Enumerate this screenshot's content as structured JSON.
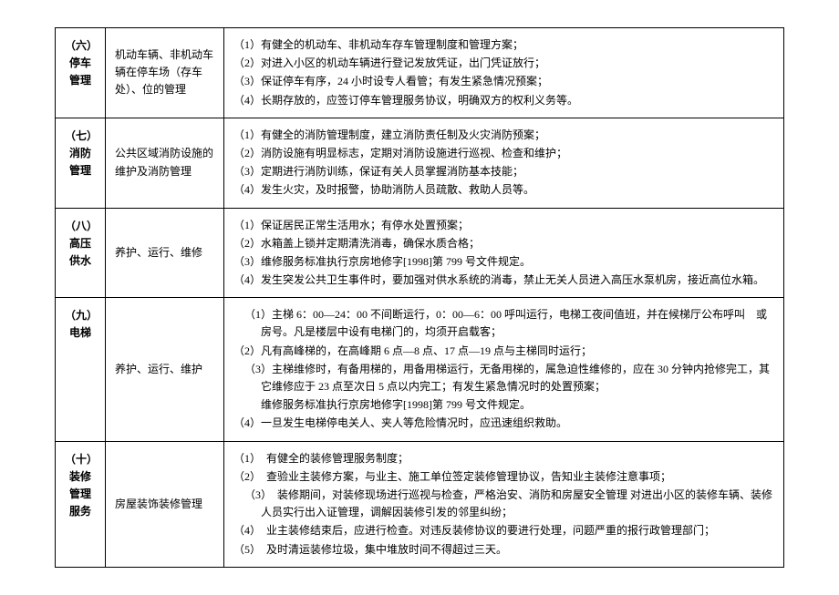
{
  "rows": [
    {
      "section_num": "（六）",
      "section_title": "停车管理",
      "desc": "机动车辆、非机动车辆在停车场（存车处）、位的管理",
      "items": [
        "（1）有健全的机动车、非机动车存车管理制度和管理方案；",
        "（2）对进入小区的机动车辆进行登记发放凭证，出门凭证放行；",
        "（3）保证停车有序，24 小时设专人看管；有发生紧急情况预案；",
        "（4）长期存放的，应签订停车管理服务协议，明确双方的权利义务等。"
      ]
    },
    {
      "section_num": "（七）",
      "section_title": "消防管理",
      "desc": "公共区域消防设施的维护及消防管理",
      "items": [
        "（1）有健全的消防管理制度，建立消防责任制及火灾消防预案；",
        "（2）消防设施有明显标志，定期对消防设施进行巡视、检查和维护；",
        "（3）定期进行消防训练，保证有关人员掌握消防基本技能；",
        "（4）发生火灾，及时报警，协助消防人员疏散、救助人员等。"
      ]
    },
    {
      "section_num": "（八）",
      "section_title": "高压供水",
      "desc": "养护、运行、维修",
      "items": [
        "（1）保证居民正常生活用水；有停水处置预案；",
        "（2）水箱盖上锁并定期清洗消毒，确保水质合格；",
        "（3）维修服务标准执行京房地修字[1998]第 799 号文件规定。",
        "（4）发生突发公共卫生事件时，要加强对供水系统的消毒，禁止无关人员进入高压水泵机房，接近高位水箱。"
      ]
    },
    {
      "section_num": "（九）",
      "section_title": "电梯",
      "desc": "养护、运行、维护",
      "items": [
        {
          "text": "（1）主梯 6：00—24：00 不间断运行，0：00—6：00 呼叫运行，电梯工夜间值班，并在候梯厅公布呼叫　或房号。凡是楼层中设有电梯门的，均须开启载客；",
          "indent": true
        },
        {
          "text": "（2）凡有高峰梯的，在高峰期 6 点—8 点、17 点—19 点与主梯同时运行；"
        },
        {
          "text": "（3）主梯维修时，有备用梯的，用备用梯运行，无备用梯的，属急迫性维修的，应在 30 分钟内抢修完工，其它维修应于 23 点至次日 5 点以内完工；有发生紧急情况时的处置预案；",
          "indent": true
        },
        {
          "text": "维修服务标准执行京房地修字[1998]第 799 号文件规定。",
          "indentMore": true
        },
        {
          "text": "（4）一旦发生电梯停电关人、夹人等危险情况时，应迅速组织救助。"
        }
      ]
    },
    {
      "section_num": "（十）",
      "section_title": "装修管理服务",
      "desc": "房屋装饰装修管理",
      "items": [
        "（1）　有健全的装修管理服务制度；",
        "（2）　查验业主装修方案，与业主、施工单位签定装修管理协议，告知业主装修注意事项；",
        {
          "text": "（3）　装修期间，对装修现场进行巡视与检查，严格治安、消防和房屋安全管理 对进出小区的装修车辆、装修人员实行出入证管理，调解因装修引发的邻里纠纷；",
          "indent": true
        },
        "（4）　业主装修结束后，应进行检查。对违反装修协议的要进行处理，问题严重的报行政管理部门；",
        "（5）　及时清运装修垃圾，集中堆放时间不得超过三天。"
      ]
    }
  ]
}
